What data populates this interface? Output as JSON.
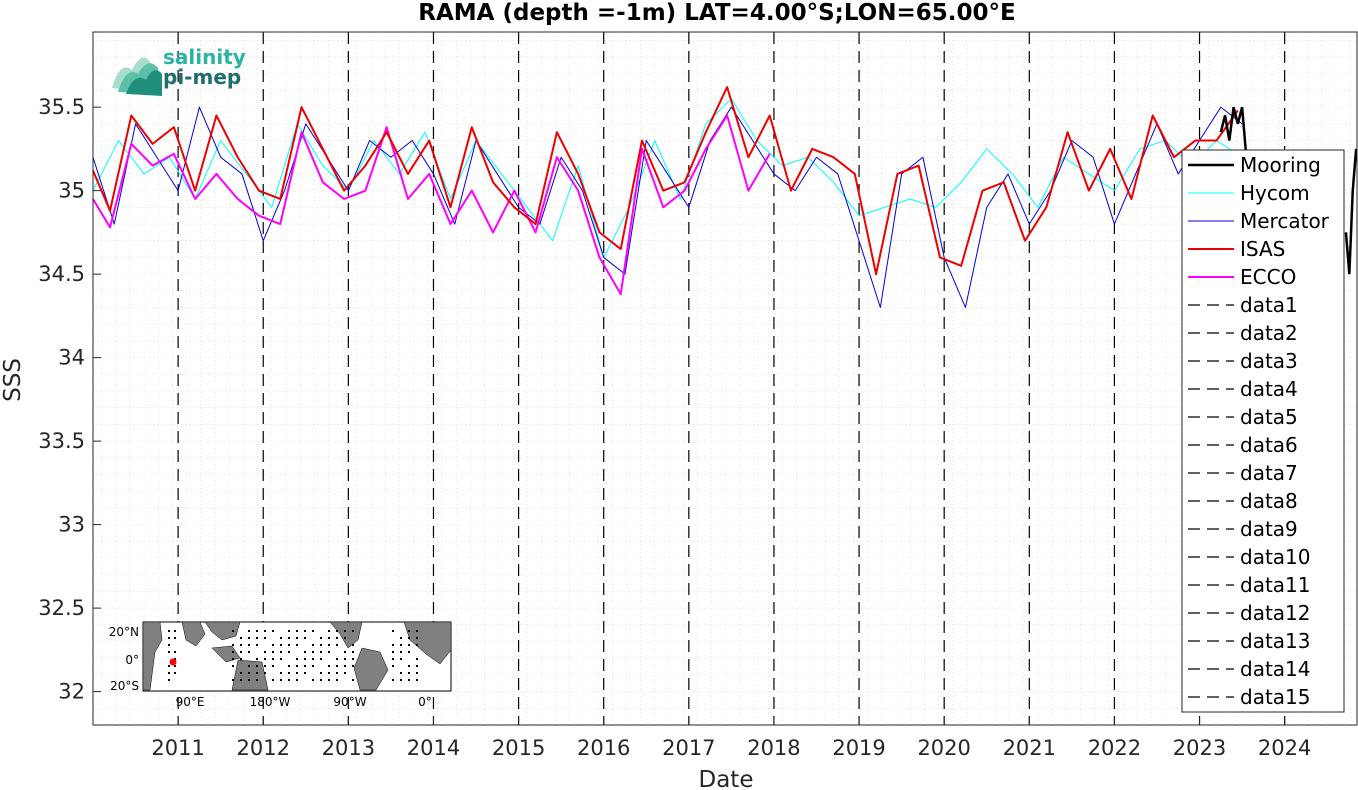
{
  "chart_data": {
    "type": "line",
    "title": "RAMA (depth =-1m) LAT=4.00°S;LON=65.00°E",
    "xlabel": "Date",
    "ylabel": "SSS",
    "xlim": [
      2010.0,
      2024.85
    ],
    "ylim": [
      31.8,
      35.95
    ],
    "yticks": [
      32,
      32.5,
      33,
      33.5,
      34,
      34.5,
      35,
      35.5
    ],
    "ytick_labels": [
      "32",
      "32.5",
      "33",
      "33.5",
      "34",
      "34.5",
      "35",
      "35.5"
    ],
    "xticks": [
      2011,
      2012,
      2013,
      2014,
      2015,
      2016,
      2017,
      2018,
      2019,
      2020,
      2021,
      2022,
      2023,
      2024
    ],
    "xtick_labels": [
      "2011",
      "2012",
      "2013",
      "2014",
      "2015",
      "2016",
      "2017",
      "2018",
      "2019",
      "2020",
      "2021",
      "2022",
      "2023",
      "2024"
    ],
    "grid": true,
    "legend_position": "right",
    "year_markers": [
      2011,
      2012,
      2013,
      2014,
      2015,
      2016,
      2017,
      2018,
      2019,
      2020,
      2021,
      2022,
      2023,
      2024
    ],
    "series": [
      {
        "name": "Mooring",
        "color": "#000000",
        "x": [
          2023.25,
          2023.3,
          2023.35,
          2023.4,
          2023.45,
          2023.5,
          2023.55,
          2024.72,
          2024.76,
          2024.8,
          2024.84
        ],
        "y": [
          35.35,
          35.45,
          35.3,
          35.5,
          35.4,
          35.5,
          35.2,
          34.75,
          34.5,
          35.0,
          35.25
        ]
      },
      {
        "name": "Hycom",
        "color": "#00ffff",
        "x": [
          2010.0,
          2010.3,
          2010.6,
          2010.9,
          2011.2,
          2011.5,
          2011.8,
          2012.1,
          2012.4,
          2012.7,
          2013.0,
          2013.3,
          2013.6,
          2013.9,
          2014.2,
          2014.5,
          2014.8,
          2015.1,
          2015.4,
          2015.7,
          2016.0,
          2016.3,
          2016.6,
          2016.9,
          2017.2,
          2017.5,
          2017.8,
          2018.1,
          2018.4,
          2018.7,
          2019.0,
          2019.3,
          2019.6,
          2019.9,
          2020.2,
          2020.5,
          2020.8,
          2021.1,
          2021.4,
          2021.7,
          2022.0,
          2022.3,
          2022.6,
          2022.9,
          2023.2,
          2023.5
        ],
        "y": [
          35.0,
          35.3,
          35.1,
          35.2,
          34.95,
          35.3,
          35.1,
          34.9,
          35.4,
          35.15,
          35.0,
          35.3,
          35.1,
          35.35,
          34.95,
          35.3,
          35.1,
          34.9,
          34.7,
          35.15,
          34.6,
          34.9,
          35.3,
          34.95,
          35.4,
          35.55,
          35.3,
          35.15,
          35.2,
          35.05,
          34.85,
          34.9,
          34.95,
          34.9,
          35.05,
          35.25,
          35.1,
          34.9,
          35.2,
          35.1,
          35.0,
          35.25,
          35.3,
          35.15,
          35.3,
          35.2
        ]
      },
      {
        "name": "Mercator",
        "color": "#0000dd",
        "x": [
          2010.0,
          2010.25,
          2010.5,
          2010.75,
          2011.0,
          2011.25,
          2011.5,
          2011.75,
          2012.0,
          2012.25,
          2012.5,
          2012.75,
          2013.0,
          2013.25,
          2013.5,
          2013.75,
          2014.0,
          2014.25,
          2014.5,
          2014.75,
          2015.0,
          2015.25,
          2015.5,
          2015.75,
          2016.0,
          2016.25,
          2016.5,
          2016.75,
          2017.0,
          2017.25,
          2017.5,
          2017.75,
          2018.0,
          2018.25,
          2018.5,
          2018.75,
          2019.0,
          2019.25,
          2019.5,
          2019.75,
          2020.0,
          2020.25,
          2020.5,
          2020.75,
          2021.0,
          2021.25,
          2021.5,
          2021.75,
          2022.0,
          2022.25,
          2022.5,
          2022.75,
          2023.0,
          2023.25,
          2023.5
        ],
        "y": [
          35.2,
          34.8,
          35.4,
          35.2,
          35.0,
          35.5,
          35.2,
          35.1,
          34.7,
          35.0,
          35.4,
          35.2,
          35.0,
          35.3,
          35.2,
          35.3,
          35.1,
          34.8,
          35.3,
          35.1,
          34.9,
          34.8,
          35.2,
          35.0,
          34.6,
          34.5,
          35.3,
          35.1,
          34.9,
          35.3,
          35.5,
          35.3,
          35.1,
          35.0,
          35.2,
          35.1,
          34.7,
          34.3,
          35.1,
          35.2,
          34.6,
          34.3,
          34.9,
          35.1,
          34.8,
          35.0,
          35.3,
          35.2,
          34.8,
          35.1,
          35.4,
          35.1,
          35.3,
          35.5,
          35.4
        ]
      },
      {
        "name": "ISAS",
        "color": "#ee0000",
        "x": [
          2010.0,
          2010.2,
          2010.45,
          2010.7,
          2010.95,
          2011.2,
          2011.45,
          2011.7,
          2011.95,
          2012.2,
          2012.45,
          2012.7,
          2012.95,
          2013.2,
          2013.45,
          2013.7,
          2013.95,
          2014.2,
          2014.45,
          2014.7,
          2014.95,
          2015.2,
          2015.45,
          2015.7,
          2015.95,
          2016.2,
          2016.45,
          2016.7,
          2016.95,
          2017.2,
          2017.45,
          2017.7,
          2017.95,
          2018.2,
          2018.45,
          2018.7,
          2018.95,
          2019.2,
          2019.45,
          2019.7,
          2019.95,
          2020.2,
          2020.45,
          2020.7,
          2020.95,
          2021.2,
          2021.45,
          2021.7,
          2021.95,
          2022.2,
          2022.45,
          2022.7,
          2022.95,
          2023.2,
          2023.45
        ],
        "y": [
          35.12,
          34.88,
          35.45,
          35.28,
          35.38,
          35.0,
          35.45,
          35.2,
          35.0,
          34.95,
          35.5,
          35.25,
          35.0,
          35.15,
          35.35,
          35.1,
          35.3,
          34.9,
          35.38,
          35.05,
          34.9,
          34.8,
          35.35,
          35.1,
          34.75,
          34.65,
          35.3,
          35.0,
          35.05,
          35.35,
          35.62,
          35.2,
          35.45,
          35.0,
          35.25,
          35.2,
          35.1,
          34.5,
          35.1,
          35.15,
          34.6,
          34.55,
          35.0,
          35.05,
          34.7,
          34.9,
          35.35,
          35.0,
          35.25,
          34.95,
          35.45,
          35.2,
          35.3,
          35.3,
          35.48
        ]
      },
      {
        "name": "ECCO",
        "color": "#ff00ff",
        "x": [
          2010.0,
          2010.2,
          2010.45,
          2010.7,
          2010.95,
          2011.2,
          2011.45,
          2011.7,
          2011.95,
          2012.2,
          2012.45,
          2012.7,
          2012.95,
          2013.2,
          2013.45,
          2013.7,
          2013.95,
          2014.2,
          2014.45,
          2014.7,
          2014.95,
          2015.2,
          2015.45,
          2015.7,
          2015.95,
          2016.2,
          2016.45,
          2016.7,
          2016.95,
          2017.2,
          2017.45,
          2017.7,
          2017.95
        ],
        "y": [
          34.95,
          34.78,
          35.28,
          35.15,
          35.22,
          34.95,
          35.1,
          34.95,
          34.85,
          34.8,
          35.35,
          35.05,
          34.95,
          35.0,
          35.38,
          34.95,
          35.1,
          34.8,
          35.0,
          34.75,
          35.0,
          34.75,
          35.2,
          35.0,
          34.6,
          34.38,
          35.25,
          34.9,
          35.0,
          35.25,
          35.45,
          35.0,
          35.22
        ]
      }
    ],
    "legend_entries": [
      "Mooring",
      "Hycom",
      "Mercator",
      "ISAS",
      "ECCO",
      "data1",
      "data2",
      "data3",
      "data4",
      "data5",
      "data6",
      "data7",
      "data8",
      "data9",
      "data10",
      "data11",
      "data12",
      "data13",
      "data14",
      "data15"
    ]
  },
  "logo": {
    "line1": "salinity",
    "line2": "pi-mep",
    "color1": "#2ab3a0",
    "color2": "#1f6e6e"
  },
  "inset_map": {
    "y_labels": [
      "20°N",
      "0°",
      "20°S"
    ],
    "x_labels": [
      "90°E",
      "180°W",
      "90°W",
      "0°"
    ],
    "land_color": "#808080",
    "ocean_color": "#ffffff",
    "marker_color": "#ff0000"
  }
}
